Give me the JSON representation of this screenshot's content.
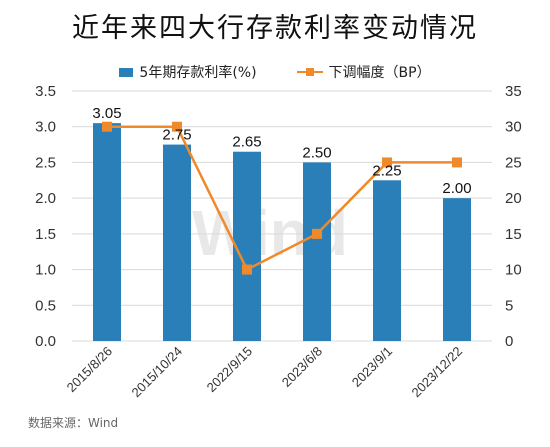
{
  "title": "近年来四大行存款利率变动情况",
  "legend": {
    "bar": "5年期存款利率(%)",
    "line": "下调幅度（BP）"
  },
  "source": "数据来源：Wind",
  "watermark": "Wind",
  "colors": {
    "bar": "#2b7fb8",
    "line": "#ee8a2b",
    "grid": "#d9d9d9"
  },
  "chart_data": {
    "type": "bar",
    "title": "近年来四大行存款利率变动情况",
    "categories": [
      "2015/8/26",
      "2015/10/24",
      "2022/9/15",
      "2023/6/8",
      "2023/9/1",
      "2023/12/22"
    ],
    "series": [
      {
        "name": "5年期存款利率(%)",
        "type": "bar",
        "axis": "left",
        "values": [
          3.05,
          2.75,
          2.65,
          2.5,
          2.25,
          2.0
        ],
        "labels": [
          "3.05",
          "2.75",
          "2.65",
          "2.50",
          "2.25",
          "2.00"
        ]
      },
      {
        "name": "下调幅度（BP）",
        "type": "line",
        "axis": "right",
        "values": [
          30,
          30,
          10,
          15,
          25,
          25
        ]
      }
    ],
    "y_left": {
      "min": 0,
      "max": 3.5,
      "ticks": [
        "0.0",
        "0.5",
        "1.0",
        "1.5",
        "2.0",
        "2.5",
        "3.0",
        "3.5"
      ]
    },
    "y_right": {
      "min": 0,
      "max": 35,
      "ticks": [
        "0",
        "5",
        "10",
        "15",
        "20",
        "25",
        "30",
        "35"
      ]
    },
    "grid": true,
    "legend_position": "top-center"
  }
}
